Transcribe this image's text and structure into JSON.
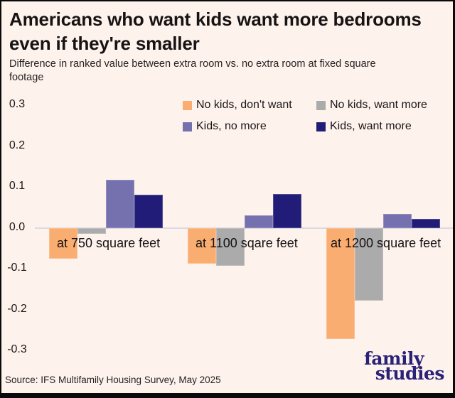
{
  "page": {
    "background": "#FDF3EC",
    "frame_color": "#0a0a0a"
  },
  "header": {
    "title": "Americans who want kids want more bedrooms even if they're smaller",
    "subtitle": "Difference in ranked value between extra room vs. no extra room at fixed square footage"
  },
  "legend": {
    "items": [
      {
        "label": "No kids, don't want",
        "color": "#FAAD71"
      },
      {
        "label": "No kids, want more",
        "color": "#ABABAB"
      },
      {
        "label": "Kids, no more",
        "color": "#7570AE"
      },
      {
        "label": "Kids, want more",
        "color": "#211C77"
      }
    ]
  },
  "chart_data": {
    "type": "bar",
    "title": "Americans who want kids want more bedrooms even if they're smaller",
    "subtitle": "Difference in ranked value between extra room vs. no extra room at fixed square footage",
    "categories": [
      "at 750 square feet",
      "at 1100 sqare feet",
      "at 1200 square feet"
    ],
    "series": [
      {
        "name": "No kids, don't want",
        "color": "#FAAD71",
        "values": [
          -0.074,
          -0.087,
          -0.272
        ]
      },
      {
        "name": "No kids, want more",
        "color": "#ABABAB",
        "values": [
          -0.014,
          -0.092,
          -0.177
        ]
      },
      {
        "name": "Kids, no more",
        "color": "#7570AE",
        "values": [
          0.118,
          0.032,
          0.034
        ]
      },
      {
        "name": "Kids, want more",
        "color": "#211C77",
        "values": [
          0.082,
          0.084,
          0.023
        ]
      }
    ],
    "yticks": [
      "0.3",
      "0.2",
      "0.1",
      "0.0",
      "-0.1",
      "-0.2",
      "-0.3"
    ],
    "ylim": [
      -0.3,
      0.3
    ],
    "xlabel": "",
    "ylabel": "",
    "grid": false,
    "legend_position": "top-right, two columns",
    "zero_line_color": "#DDD9E3"
  },
  "footer": {
    "source": "Source: IFS Multifamily Housing Survey, May 2025"
  },
  "logo": {
    "line1": "family",
    "line2": "studies",
    "color": "#2A2178"
  }
}
